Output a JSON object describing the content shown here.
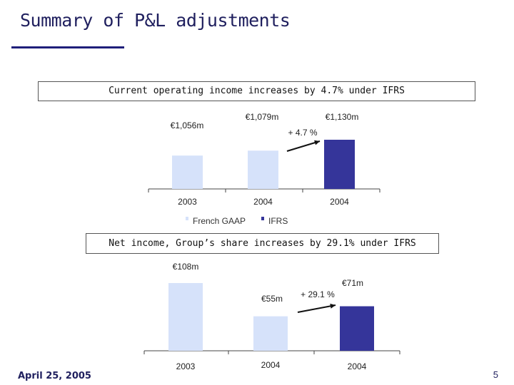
{
  "title": "Summary of P&L adjustments",
  "footer": {
    "date": "April 25, 2005",
    "page": "5"
  },
  "colors": {
    "french_gaap": "#d6e2fa",
    "ifrs": "#35359a",
    "title": "#1f1f5e"
  },
  "chart_data": [
    {
      "type": "bar",
      "title": "Current operating income increases by 4.7% under IFRS",
      "categories": [
        "2003",
        "2004",
        "2004"
      ],
      "series": [
        {
          "name": "French GAAP",
          "values": [
            1056,
            1079,
            null
          ]
        },
        {
          "name": "IFRS",
          "values": [
            null,
            null,
            1130
          ]
        }
      ],
      "data_labels": [
        "€1,056m",
        "€1,079m",
        "€1,130m"
      ],
      "annotation": "+ 4.7 %",
      "legend": [
        "French GAAP",
        "IFRS"
      ],
      "legend_position": "bottom",
      "ylim": [
        900,
        1150
      ]
    },
    {
      "type": "bar",
      "title": "Net income, Group’s share increases by 29.1% under IFRS",
      "categories": [
        "2003",
        "2004",
        "2004"
      ],
      "series": [
        {
          "name": "French GAAP",
          "values": [
            108,
            55,
            null
          ]
        },
        {
          "name": "IFRS",
          "values": [
            null,
            null,
            71
          ]
        }
      ],
      "data_labels": [
        "€108m",
        "€55m",
        "€71m"
      ],
      "annotation": "+ 29.1 %",
      "ylim": [
        0,
        108
      ]
    }
  ]
}
